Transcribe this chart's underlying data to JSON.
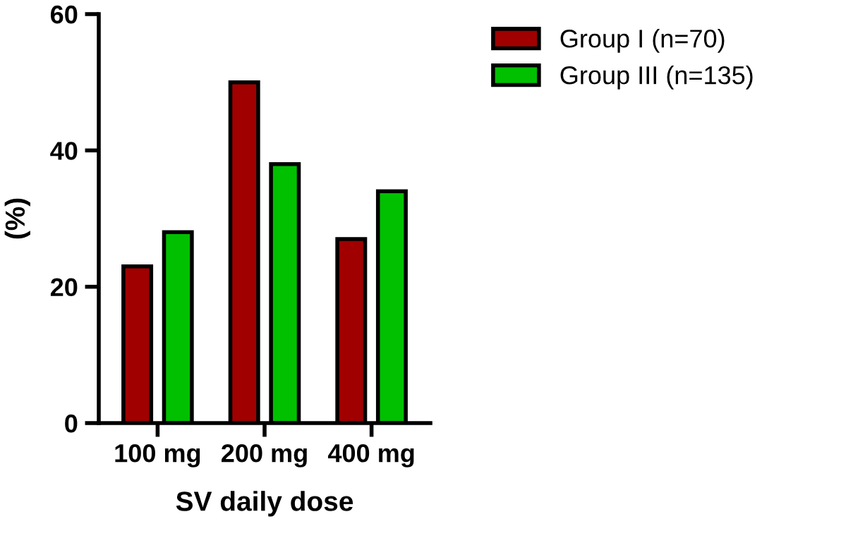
{
  "chart_data": {
    "type": "bar",
    "xlabel": "SV daily dose",
    "ylabel": "(%)",
    "categories": [
      "100 mg",
      "200 mg",
      "400 mg"
    ],
    "series": [
      {
        "name": "Group I (n=70)",
        "color": "#a00000",
        "values": [
          23,
          50,
          27
        ]
      },
      {
        "name": "Group III (n=135)",
        "color": "#00c000",
        "values": [
          28,
          38,
          34
        ]
      }
    ],
    "ylim": [
      0,
      60
    ],
    "yticks": [
      0,
      20,
      40,
      60
    ],
    "grid": false,
    "legend": "top right"
  }
}
